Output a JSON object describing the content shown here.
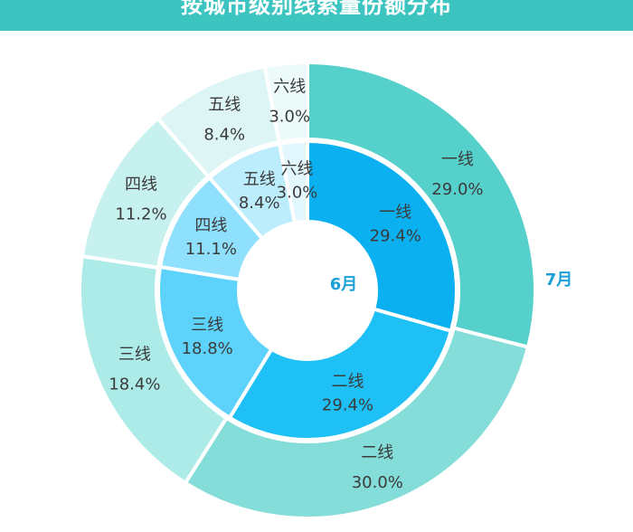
{
  "header": {
    "title": "按城市级别线索量份额分布"
  },
  "chart_data": [
    {
      "type": "pie",
      "ring": "inner",
      "series_label": "6月",
      "categories": [
        "一线",
        "二线",
        "三线",
        "四线",
        "五线",
        "六线"
      ],
      "values": [
        29.4,
        29.4,
        18.8,
        11.1,
        8.4,
        3.0
      ],
      "value_labels": [
        "29.4%",
        "29.4%",
        "18.8%",
        "11.1%",
        "8.4%",
        "3.0%"
      ],
      "colors": [
        "#0ab0ef",
        "#1ec0f5",
        "#5dd3fb",
        "#8fe0fc",
        "#bcedfd",
        "#e3f8fe"
      ]
    },
    {
      "type": "pie",
      "ring": "outer",
      "series_label": "7月",
      "categories": [
        "一线",
        "二线",
        "三线",
        "四线",
        "五线",
        "六线"
      ],
      "values": [
        29.0,
        30.0,
        18.4,
        11.2,
        8.4,
        3.0
      ],
      "value_labels": [
        "29.0%",
        "30.0%",
        "18.4%",
        "11.2%",
        "8.4%",
        "3.0%"
      ],
      "colors": [
        "#56d0cb",
        "#84ddd9",
        "#acebe7",
        "#c7f1ee",
        "#ddf6f5",
        "#edfafa"
      ]
    }
  ]
}
